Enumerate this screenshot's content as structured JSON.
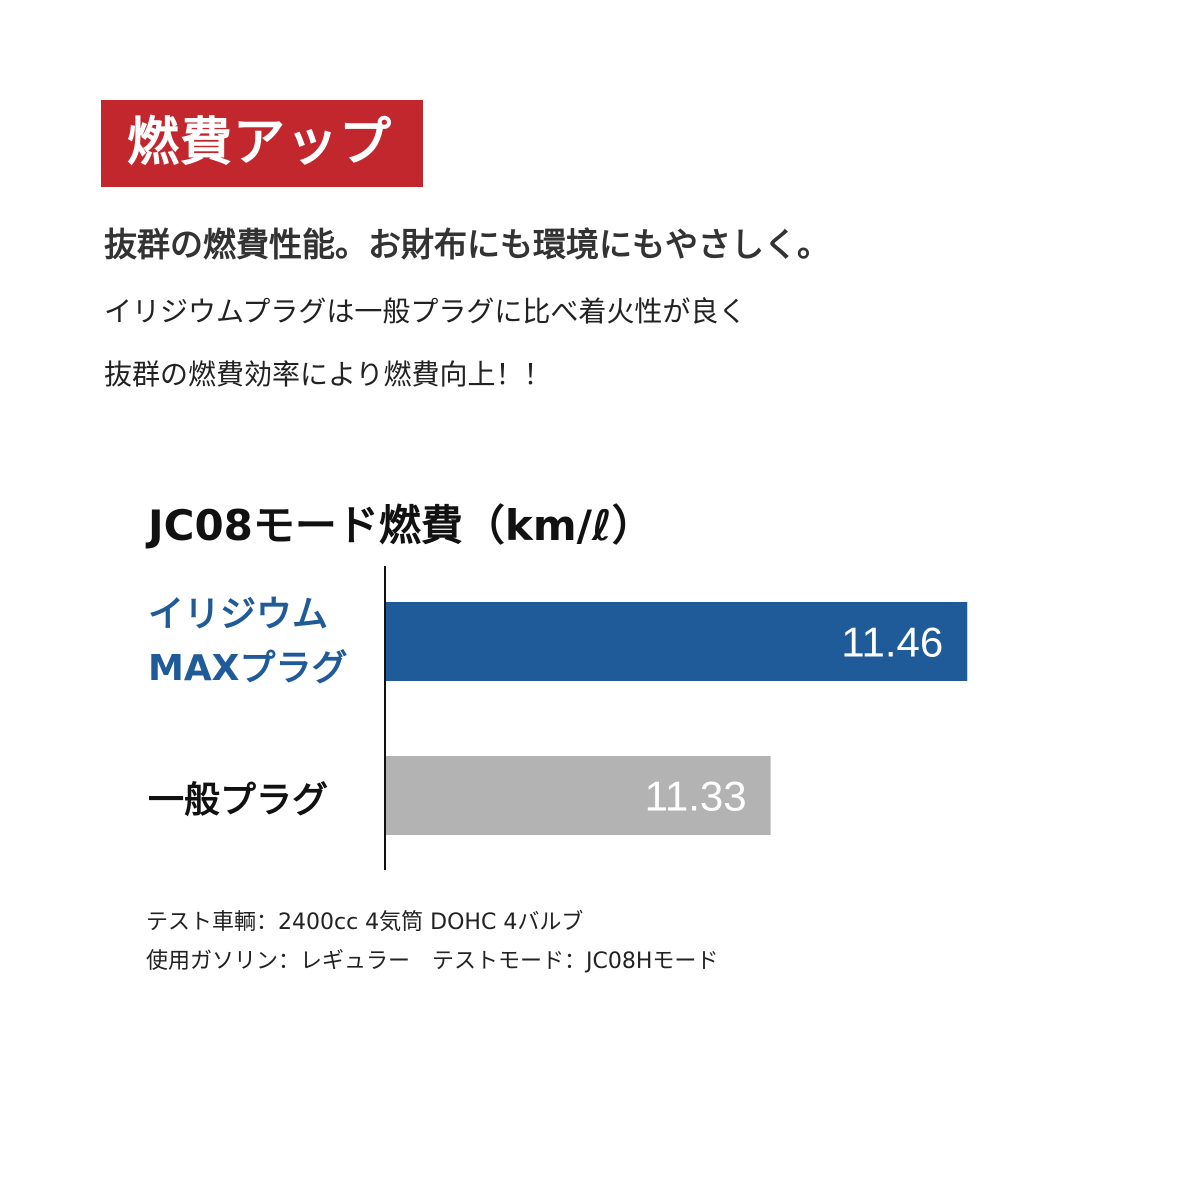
{
  "badge": "燃費アップ",
  "headline": "抜群の燃費性能。お財布にも環境にもやさしく。",
  "body": [
    "イリジウムプラグは一般プラグに比べ着火性が良く",
    "抜群の燃費効率により燃費向上！！"
  ],
  "colors": {
    "badge": "#c1272d",
    "iridium": "#1f5a99",
    "standard": "#b3b3b3",
    "value_text": "#ffffff"
  },
  "chart_data": {
    "type": "bar",
    "orientation": "horizontal",
    "title": "JC08モード燃費（km/ℓ）",
    "categories": [
      "イリジウム MAXプラグ",
      "一般プラグ"
    ],
    "category_lines": [
      [
        "イリジウム",
        "MAXプラグ"
      ],
      [
        "一般プラグ"
      ]
    ],
    "values": [
      11.46,
      11.33
    ],
    "value_labels": [
      "11.46",
      "11.33"
    ],
    "bar_colors": [
      "#1f5a99",
      "#b3b3b3"
    ],
    "label_colors": [
      "#1f5a99",
      "#111111"
    ],
    "xlim": [
      11.075,
      11.52
    ],
    "grid": false
  },
  "notes": [
    "テスト車輌：2400cc 4気筒 DOHC 4バルブ",
    "使用ガソリン：レギュラー　テストモード：JC08Hモード"
  ]
}
